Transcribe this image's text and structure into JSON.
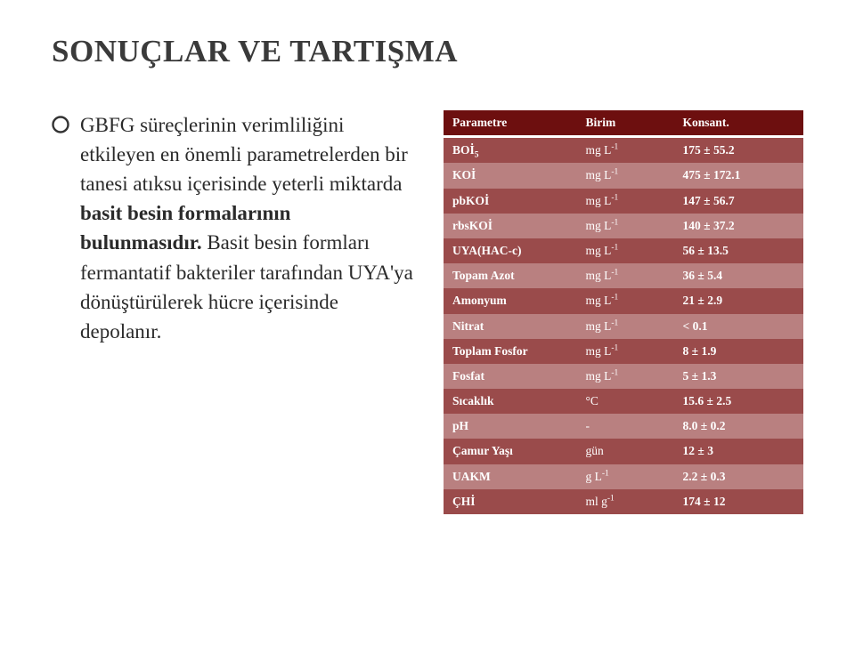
{
  "title": "SONUÇLAR VE TARTIŞMA",
  "bullet": {
    "pre": "GBFG süreçlerinin verimliliğini etkileyen en önemli parametrelerden bir tanesi atıksu içerisinde yeterli miktarda ",
    "bold": "basit besin formalarının bulunmasıdır.",
    "post": " Basit besin formları fermantatif bakteriler tarafından UYA'ya dönüştürülerek hücre içerisinde depolanır."
  },
  "table": {
    "headers": [
      "Parametre",
      "Birim",
      "Konsant."
    ],
    "rows": [
      {
        "param_html": "BOİ<sub>5</sub>",
        "birim_html": "mg L<sup>-1</sup>",
        "konst": "175 ± 55.2"
      },
      {
        "param_html": "KOİ",
        "birim_html": "mg L<sup>-1</sup>",
        "konst": "475 ± 172.1"
      },
      {
        "param_html": "pbKOİ",
        "birim_html": "mg L<sup>-1</sup>",
        "konst": "147 ± 56.7"
      },
      {
        "param_html": "rbsKOİ",
        "birim_html": "mg L<sup>-1</sup>",
        "konst": "140 ± 37.2"
      },
      {
        "param_html": "UYA(HAC-c)",
        "birim_html": "mg L<sup>-1</sup>",
        "konst": "56 ± 13.5"
      },
      {
        "param_html": "Topam Azot",
        "birim_html": "mg L<sup>-1</sup>",
        "konst": "36 ± 5.4"
      },
      {
        "param_html": "Amonyum",
        "birim_html": "mg L<sup>-1</sup>",
        "konst": "21 ± 2.9"
      },
      {
        "param_html": "Nitrat",
        "birim_html": "mg L<sup>-1</sup>",
        "konst": "< 0.1"
      },
      {
        "param_html": "Toplam Fosfor",
        "birim_html": "mg L<sup>-1</sup>",
        "konst": "8 ± 1.9"
      },
      {
        "param_html": "Fosfat",
        "birim_html": "mg L<sup>-1</sup>",
        "konst": "5 ± 1.3"
      },
      {
        "param_html": "Sıcaklık",
        "birim_html": "°C",
        "konst": "15.6 ± 2.5"
      },
      {
        "param_html": "pH",
        "birim_html": "-",
        "konst": "8.0 ± 0.2"
      },
      {
        "param_html": "Çamur Yaşı",
        "birim_html": "gün",
        "konst": "12 ± 3"
      },
      {
        "param_html": "UAKM",
        "birim_html": "g L<sup>-1</sup>",
        "konst": "2.2 ± 0.3"
      },
      {
        "param_html": "ÇHİ",
        "birim_html": "ml g<sup>-1</sup>",
        "konst": "174 ± 12"
      }
    ]
  },
  "colors": {
    "header_bg": "#6d0f0f",
    "row_odd_bg": "#9a4b4b",
    "row_even_bg": "#b98080",
    "text_on_red": "#ffffff",
    "page_bg": "#ffffff",
    "body_text": "#2a2a2a"
  }
}
